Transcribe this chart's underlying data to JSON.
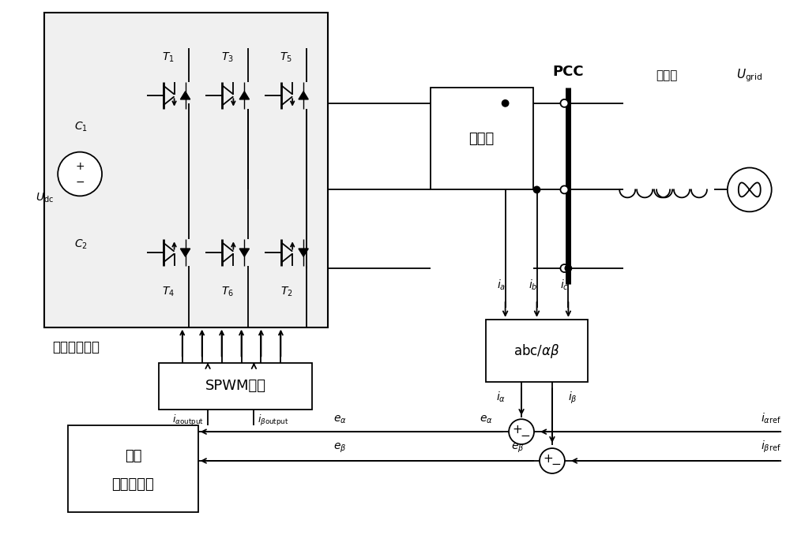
{
  "bg": "#ffffff",
  "lc": "#000000",
  "lw": 1.3,
  "fig_w": 10.0,
  "fig_h": 6.78,
  "dpi": 100,
  "inv_label": "开关控制信号",
  "filter_label": "滤波器",
  "spwm_label": "SPWM模块",
  "ctrl_label1": "改进",
  "ctrl_label2": "重复控制器",
  "pcc_label": "PCC",
  "trans_label": "变压器"
}
